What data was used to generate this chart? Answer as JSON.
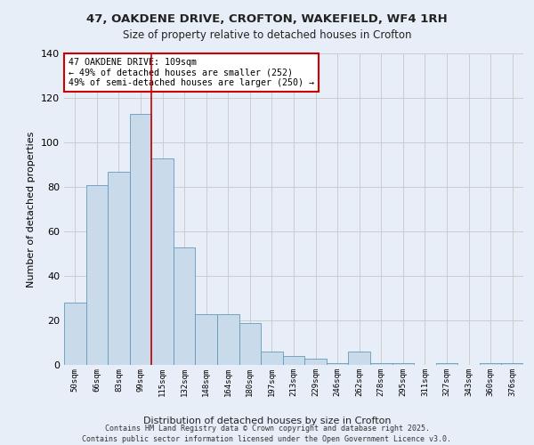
{
  "title1": "47, OAKDENE DRIVE, CROFTON, WAKEFIELD, WF4 1RH",
  "title2": "Size of property relative to detached houses in Crofton",
  "xlabel": "Distribution of detached houses by size in Crofton",
  "ylabel": "Number of detached properties",
  "bar_labels": [
    "50sqm",
    "66sqm",
    "83sqm",
    "99sqm",
    "115sqm",
    "132sqm",
    "148sqm",
    "164sqm",
    "180sqm",
    "197sqm",
    "213sqm",
    "229sqm",
    "246sqm",
    "262sqm",
    "278sqm",
    "295sqm",
    "311sqm",
    "327sqm",
    "343sqm",
    "360sqm",
    "376sqm"
  ],
  "bar_values": [
    28,
    81,
    87,
    113,
    93,
    53,
    23,
    23,
    19,
    6,
    4,
    3,
    1,
    6,
    1,
    1,
    0,
    1,
    0,
    1,
    1
  ],
  "bar_color": "#c9daea",
  "bar_edge_color": "#6699bb",
  "grid_color": "#cccccc",
  "vline_x": 3.5,
  "vline_color": "#cc0000",
  "annotation_text": "47 OAKDENE DRIVE: 109sqm\n← 49% of detached houses are smaller (252)\n49% of semi-detached houses are larger (250) →",
  "annotation_box_color": "#ffffff",
  "annotation_box_edge": "#cc0000",
  "ylim": [
    0,
    140
  ],
  "yticks": [
    0,
    20,
    40,
    60,
    80,
    100,
    120,
    140
  ],
  "footer1": "Contains HM Land Registry data © Crown copyright and database right 2025.",
  "footer2": "Contains public sector information licensed under the Open Government Licence v3.0.",
  "bg_color": "#e8eef8"
}
